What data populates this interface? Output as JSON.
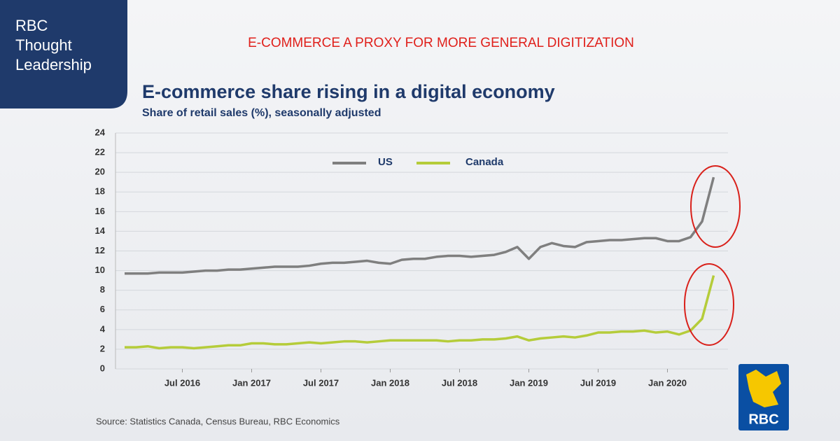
{
  "brand": [
    "RBC",
    "Thought",
    "Leadership"
  ],
  "headline": "E-COMMERCE A PROXY FOR MORE GENERAL DIGITIZATION",
  "logo": "RBC",
  "chart_data": {
    "type": "line",
    "title": "E-commerce share rising in a digital economy",
    "subtitle": "Share of retail sales (%), seasonally adjusted",
    "source": "Source: Statistics Canada, Census Bureau, RBC Economics",
    "categories": [
      null,
      null,
      null,
      null,
      null,
      "Jul 2016",
      null,
      null,
      null,
      null,
      null,
      "Jan 2017",
      null,
      null,
      null,
      null,
      null,
      "Jul 2017",
      null,
      null,
      null,
      null,
      null,
      "Jan 2018",
      null,
      null,
      null,
      null,
      null,
      "Jul 2018",
      null,
      null,
      null,
      null,
      null,
      "Jan 2019",
      null,
      null,
      null,
      null,
      null,
      "Jul 2019",
      null,
      null,
      null,
      null,
      null,
      "Jan 2020",
      null,
      null,
      null,
      null
    ],
    "series": [
      {
        "name": "US",
        "color": "#7f7f7f",
        "values": [
          9.7,
          9.7,
          9.7,
          9.8,
          9.8,
          9.8,
          9.9,
          10.0,
          10.0,
          10.1,
          10.1,
          10.2,
          10.3,
          10.4,
          10.4,
          10.4,
          10.5,
          10.7,
          10.8,
          10.8,
          10.9,
          11.0,
          10.8,
          10.7,
          11.1,
          11.2,
          11.2,
          11.4,
          11.5,
          11.5,
          11.4,
          11.5,
          11.6,
          11.9,
          12.4,
          11.2,
          12.4,
          12.8,
          12.5,
          12.4,
          12.9,
          13.0,
          13.1,
          13.1,
          13.2,
          13.3,
          13.3,
          13.0,
          13.0,
          13.4,
          15.0,
          19.5
        ]
      },
      {
        "name": "Canada",
        "color": "#b5cc3a",
        "values": [
          2.2,
          2.2,
          2.3,
          2.1,
          2.2,
          2.2,
          2.1,
          2.2,
          2.3,
          2.4,
          2.4,
          2.6,
          2.6,
          2.5,
          2.5,
          2.6,
          2.7,
          2.6,
          2.7,
          2.8,
          2.8,
          2.7,
          2.8,
          2.9,
          2.9,
          2.9,
          2.9,
          2.9,
          2.8,
          2.9,
          2.9,
          3.0,
          3.0,
          3.1,
          3.3,
          2.9,
          3.1,
          3.2,
          3.3,
          3.2,
          3.4,
          3.7,
          3.7,
          3.8,
          3.8,
          3.9,
          3.7,
          3.8,
          3.5,
          3.9,
          5.1,
          9.5
        ]
      }
    ],
    "ylim": [
      0,
      24
    ],
    "yticks": [
      0,
      2,
      4,
      6,
      8,
      10,
      12,
      14,
      16,
      18,
      20,
      22,
      24
    ],
    "grid": true
  }
}
